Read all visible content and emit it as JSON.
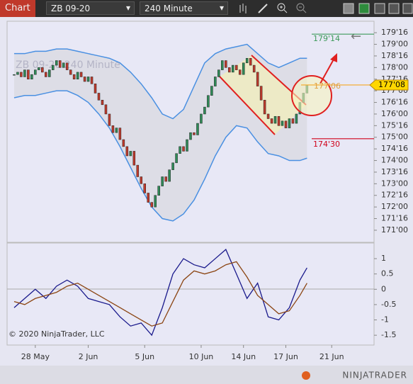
{
  "toolbar": {
    "title": "Chart",
    "instrument": "ZB 09-20",
    "interval": "240 Minute"
  },
  "chart_data": {
    "type": "candlestick",
    "watermark": "ZB 09-20  240 Minute",
    "copyright": "© 2020 NinjaTrader, LLC",
    "logo": "NINJATRADER",
    "up_color": "#2e8b57",
    "down_color": "#c0392b",
    "xlim": [
      -2,
      102
    ],
    "xticks": [
      {
        "value": 6,
        "label": "28 May"
      },
      {
        "value": 21,
        "label": "2 Jun"
      },
      {
        "value": 37,
        "label": "5 Jun"
      },
      {
        "value": 53,
        "label": "10 Jun"
      },
      {
        "value": 65,
        "label": "14 Jun"
      },
      {
        "value": 77,
        "label": "17 Jun"
      },
      {
        "value": 90,
        "label": "21 Jun"
      }
    ],
    "ylim": [
      170.48,
      179.84
    ],
    "yticks": [
      {
        "value": 179.5,
        "label": "179'16"
      },
      {
        "value": 179,
        "label": "179'00"
      },
      {
        "value": 178.5,
        "label": "178'16"
      },
      {
        "value": 178,
        "label": "178'00"
      },
      {
        "value": 177.5,
        "label": "177'16"
      },
      {
        "value": 177,
        "label": "177'00"
      },
      {
        "value": 176.5,
        "label": "176'16"
      },
      {
        "value": 176,
        "label": "176'00"
      },
      {
        "value": 175.5,
        "label": "175'16"
      },
      {
        "value": 175,
        "label": "175'00"
      },
      {
        "value": 174.5,
        "label": "174'16"
      },
      {
        "value": 174,
        "label": "174'00"
      },
      {
        "value": 173.5,
        "label": "173'16"
      },
      {
        "value": 173,
        "label": "173'00"
      },
      {
        "value": 172.5,
        "label": "172'16"
      },
      {
        "value": 172,
        "label": "172'00"
      },
      {
        "value": 171.5,
        "label": "171'16"
      },
      {
        "value": 171,
        "label": "171'00"
      }
    ],
    "close": [
      177.7,
      177.8,
      177.6,
      177.9,
      177.5,
      177.7,
      177.9,
      178.0,
      177.8,
      177.6,
      177.9,
      178.1,
      178.3,
      178.0,
      178.2,
      177.9,
      177.7,
      177.5,
      177.8,
      177.6,
      177.4,
      177.6,
      177.3,
      176.9,
      176.6,
      176.4,
      176.0,
      175.5,
      175.2,
      175.4,
      174.9,
      174.6,
      174.2,
      174.4,
      173.8,
      173.3,
      173.0,
      172.6,
      172.2,
      172.0,
      172.5,
      172.9,
      173.3,
      173.1,
      173.6,
      173.9,
      174.3,
      174.6,
      174.4,
      174.9,
      175.2,
      175.1,
      175.6,
      176.0,
      176.3,
      176.8,
      177.2,
      177.6,
      177.9,
      178.3,
      178.0,
      177.8,
      178.1,
      177.9,
      177.7,
      178.2,
      178.4,
      178.1,
      177.8,
      177.2,
      176.6,
      176.0,
      175.8,
      175.6,
      175.9,
      175.5,
      175.7,
      175.4,
      175.8,
      175.6,
      176.0,
      176.5,
      176.9,
      177.25
    ],
    "band": {
      "x": [
        0,
        3,
        6,
        9,
        12,
        15,
        18,
        21,
        24,
        27,
        30,
        33,
        36,
        39,
        42,
        45,
        48,
        51,
        54,
        57,
        60,
        63,
        66,
        69,
        72,
        75,
        78,
        81,
        83
      ],
      "upper": [
        178.6,
        178.6,
        178.7,
        178.7,
        178.8,
        178.8,
        178.7,
        178.6,
        178.5,
        178.4,
        178.2,
        177.8,
        177.3,
        176.7,
        176.0,
        175.8,
        176.2,
        177.2,
        178.2,
        178.6,
        178.8,
        178.9,
        179.0,
        178.6,
        178.2,
        178.0,
        178.2,
        178.4,
        178.4
      ],
      "lower": [
        176.7,
        176.8,
        176.8,
        176.9,
        177.0,
        177.0,
        176.8,
        176.5,
        176.0,
        175.4,
        174.6,
        173.7,
        172.8,
        172.0,
        171.5,
        171.4,
        171.7,
        172.3,
        173.2,
        174.2,
        175.0,
        175.5,
        175.4,
        174.8,
        174.3,
        174.2,
        174.0,
        174.0,
        174.1
      ],
      "color": "#4a90e2"
    },
    "levels": [
      {
        "value": 179.4375,
        "label": "179'14",
        "color": "#3c9a5a"
      },
      {
        "value": 177.25,
        "label": "177'08",
        "color": "#f5a623"
      },
      {
        "value": 174.9375,
        "label": "174'30",
        "color": "#d0021b"
      }
    ],
    "marker": {
      "value": 177.1875,
      "label": "177'06"
    },
    "oscillator": {
      "x": [
        0,
        3,
        6,
        9,
        12,
        15,
        18,
        21,
        24,
        27,
        30,
        33,
        36,
        39,
        42,
        45,
        48,
        51,
        54,
        57,
        60,
        63,
        66,
        69,
        72,
        75,
        78,
        81,
        83
      ],
      "ylim": [
        -1.82,
        1.51
      ],
      "yticks": [
        1,
        0.5,
        0,
        -0.5,
        -1,
        -1.5
      ],
      "series": [
        {
          "color": "#1a1a8c",
          "values": [
            -0.6,
            -0.3,
            0.0,
            -0.3,
            0.1,
            0.3,
            0.1,
            -0.3,
            -0.4,
            -0.5,
            -0.9,
            -1.2,
            -1.1,
            -1.5,
            -0.6,
            0.5,
            1.0,
            0.8,
            0.7,
            1.0,
            1.3,
            0.5,
            -0.3,
            0.2,
            -0.9,
            -1.0,
            -0.6,
            0.3,
            0.7
          ]
        },
        {
          "color": "#8b4513",
          "values": [
            -0.4,
            -0.5,
            -0.3,
            -0.2,
            -0.1,
            0.1,
            0.2,
            0.0,
            -0.2,
            -0.4,
            -0.6,
            -0.8,
            -1.0,
            -1.2,
            -1.1,
            -0.4,
            0.3,
            0.6,
            0.5,
            0.6,
            0.8,
            0.9,
            0.4,
            -0.2,
            -0.5,
            -0.8,
            -0.7,
            -0.2,
            0.2
          ]
        }
      ]
    }
  }
}
